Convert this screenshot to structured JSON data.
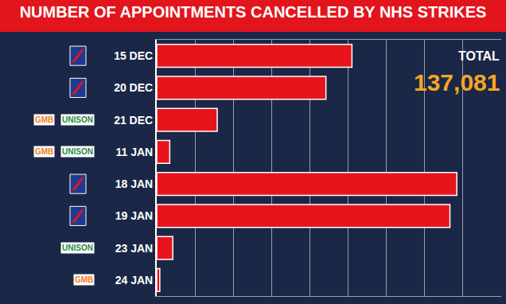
{
  "chart_data": {
    "type": "bar",
    "orientation": "horizontal",
    "title": "NUMBER OF APPOINTMENTS CANCELLED BY NHS STRIKES",
    "categories": [
      "15 DEC",
      "20 DEC",
      "21 DEC",
      "11 JAN",
      "18 JAN",
      "19 JAN",
      "23 JAN",
      "24 JAN"
    ],
    "values": [
      25500,
      22100,
      7900,
      1700,
      39200,
      38300,
      2100,
      400
    ],
    "color": "#e8141b",
    "xlim": [
      0,
      45000
    ],
    "xticks": [
      0,
      5000,
      10000,
      15000,
      20000,
      25000,
      30000,
      35000,
      40000,
      45000
    ],
    "grid": true,
    "tick_labels": "y",
    "annotations": [
      "TOTAL",
      "137,081"
    ],
    "logo_texts": [
      null,
      null,
      [
        {
          "text": "GMB",
          "color": "#f47b20"
        },
        {
          "text": "UNISON",
          "color": "#2a8a3e"
        }
      ],
      [
        {
          "text": "GMB",
          "color": "#f47b20"
        },
        {
          "text": "UNISON",
          "color": "#2a8a3e"
        }
      ],
      null,
      null,
      [
        {
          "text": "UNISON",
          "color": "#2a8a3e"
        }
      ],
      [
        {
          "text": "GMB",
          "color": "#f47b20"
        }
      ]
    ]
  }
}
